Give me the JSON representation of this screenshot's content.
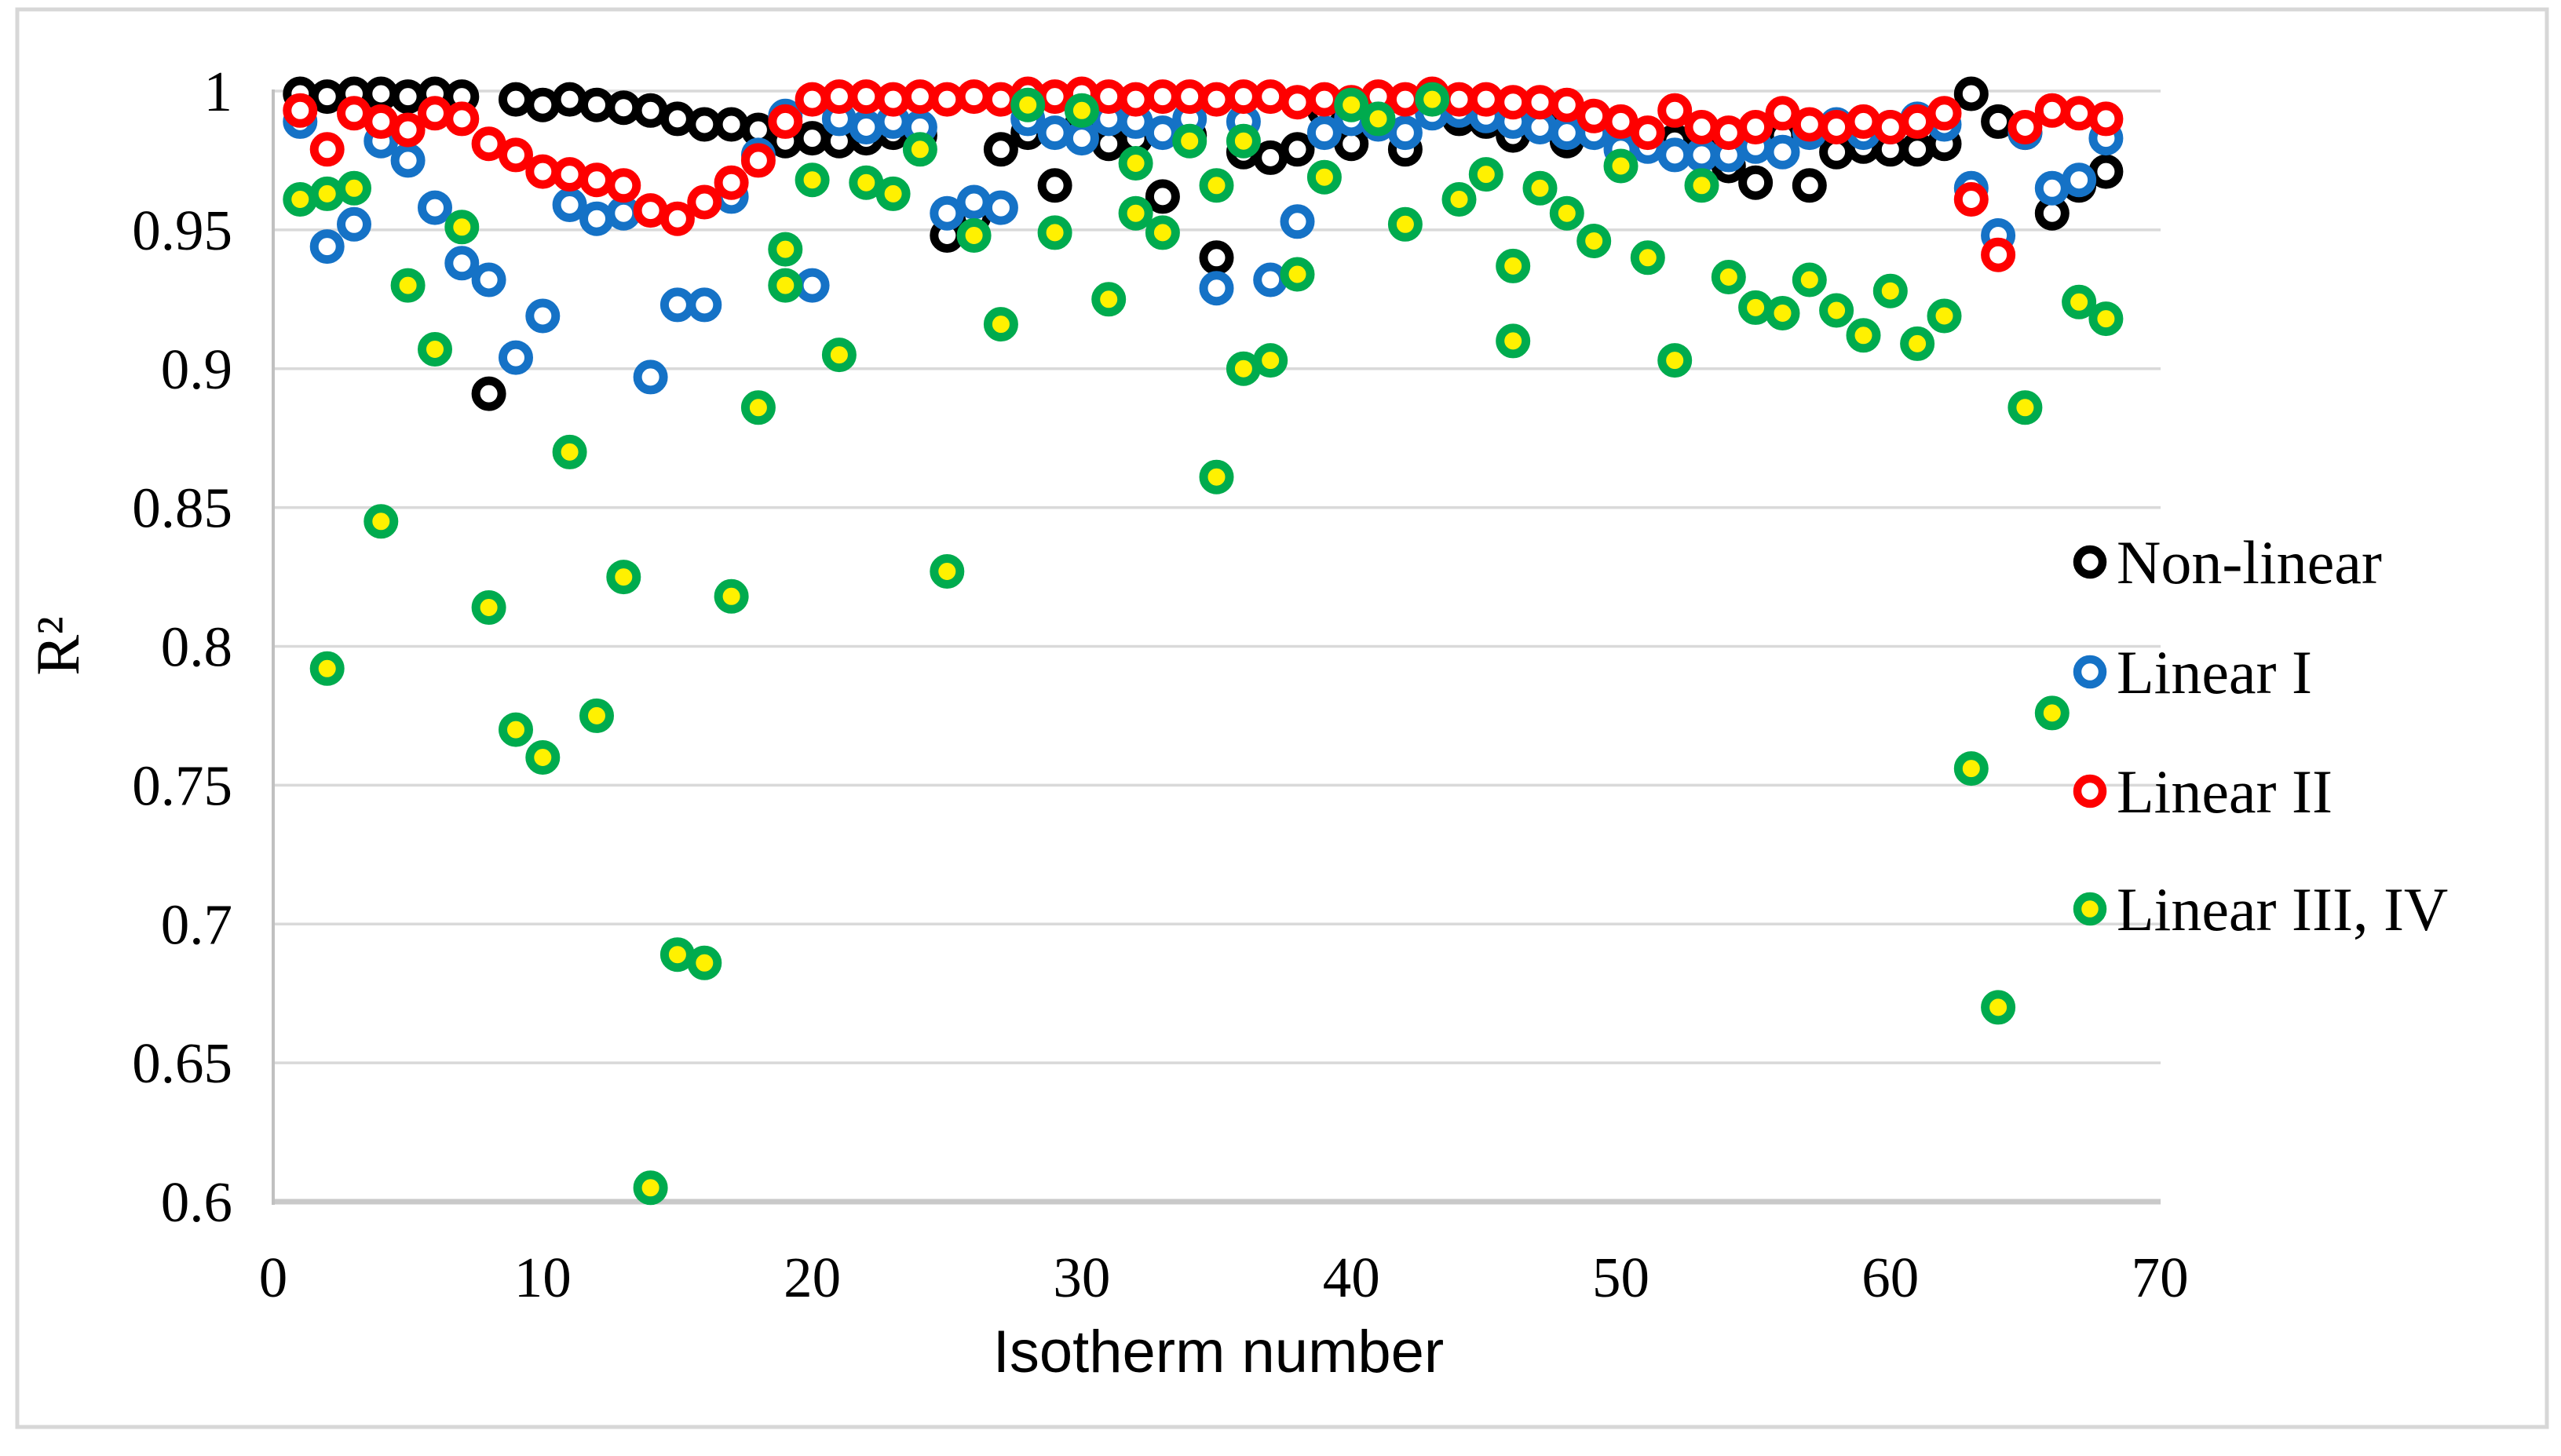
{
  "figure": {
    "background": "#ffffff",
    "border_color": "#d7d7d7",
    "gridline_color": "#d9d9d9",
    "axisline_color": "#c0c0c0"
  },
  "chart_data": {
    "type": "scatter",
    "title": "",
    "xlabel": "Isotherm number",
    "ylabel": "R²",
    "xlim": [
      0,
      70
    ],
    "ylim": [
      0.6,
      1.0
    ],
    "grid": true,
    "legend_position": "right-middle",
    "xticks": [
      0,
      10,
      20,
      30,
      40,
      50,
      60,
      70
    ],
    "yticks": [
      "1",
      "0.95",
      "0.9",
      "0.85",
      "0.8",
      "0.75",
      "0.7",
      "0.65",
      "0.6"
    ],
    "ytick_values": [
      1.0,
      0.95,
      0.9,
      0.85,
      0.8,
      0.75,
      0.7,
      0.65,
      0.6
    ],
    "categories_x": [
      1,
      2,
      3,
      4,
      5,
      6,
      7,
      8,
      9,
      10,
      11,
      12,
      13,
      14,
      15,
      16,
      17,
      18,
      19,
      20,
      21,
      22,
      23,
      24,
      25,
      26,
      27,
      28,
      29,
      30,
      31,
      32,
      33,
      34,
      35,
      36,
      37,
      38,
      39,
      40,
      41,
      42,
      43,
      44,
      45,
      46,
      47,
      48,
      49,
      50,
      51,
      52,
      53,
      54,
      55,
      56,
      57,
      58,
      59,
      60,
      61,
      62,
      63,
      64,
      65,
      66,
      67,
      68
    ],
    "series": [
      {
        "name": "Non-linear",
        "ring": "#000000",
        "fill": "#ffffff",
        "uses_categories": true,
        "y": [
          0.999,
          0.998,
          0.999,
          0.999,
          0.998,
          0.999,
          0.998,
          0.891,
          0.997,
          0.995,
          0.997,
          0.995,
          0.994,
          0.993,
          0.99,
          0.988,
          0.988,
          0.986,
          0.982,
          0.983,
          0.982,
          0.983,
          0.985,
          0.984,
          0.948,
          0.955,
          0.979,
          0.985,
          0.966,
          0.988,
          0.981,
          0.983,
          0.962,
          0.984,
          0.94,
          0.978,
          0.976,
          0.979,
          0.993,
          0.981,
          0.994,
          0.979,
          0.995,
          0.99,
          0.989,
          0.984,
          0.99,
          0.982,
          0.988,
          0.985,
          0.982,
          0.982,
          0.984,
          0.973,
          0.967,
          0.984,
          0.966,
          0.978,
          0.98,
          0.979,
          0.979,
          0.981,
          0.999,
          0.989,
          0.985,
          0.956,
          0.966,
          0.971
        ]
      },
      {
        "name": "Linear I",
        "ring": "#1572c6",
        "fill": "#ffffff",
        "uses_categories": true,
        "y": [
          0.989,
          0.944,
          0.952,
          0.982,
          0.975,
          0.958,
          0.938,
          0.932,
          0.904,
          0.919,
          0.959,
          0.954,
          0.956,
          0.897,
          0.923,
          0.923,
          0.962,
          0.977,
          0.991,
          0.93,
          0.99,
          0.987,
          0.989,
          0.987,
          0.956,
          0.96,
          0.958,
          0.99,
          0.985,
          0.983,
          0.99,
          0.989,
          0.985,
          0.99,
          0.929,
          0.989,
          0.932,
          0.953,
          0.985,
          0.99,
          0.988,
          0.985,
          0.992,
          0.993,
          0.991,
          0.989,
          0.987,
          0.985,
          0.985,
          0.979,
          0.98,
          0.977,
          0.977,
          0.977,
          0.98,
          0.978,
          0.985,
          0.988,
          0.985,
          0.987,
          0.99,
          0.988,
          0.965,
          0.948,
          0.985,
          0.965,
          0.968,
          0.983
        ]
      },
      {
        "name": "Linear II",
        "ring": "#fe0000",
        "fill": "#ffffff",
        "uses_categories": true,
        "y": [
          0.993,
          0.979,
          0.992,
          0.989,
          0.986,
          0.992,
          0.99,
          0.981,
          0.977,
          0.971,
          0.97,
          0.968,
          0.966,
          0.957,
          0.954,
          0.96,
          0.967,
          0.975,
          0.989,
          0.997,
          0.998,
          0.998,
          0.997,
          0.998,
          0.997,
          0.998,
          0.997,
          0.999,
          0.998,
          0.999,
          0.998,
          0.997,
          0.998,
          0.998,
          0.997,
          0.998,
          0.998,
          0.996,
          0.997,
          0.996,
          0.998,
          0.997,
          0.999,
          0.997,
          0.997,
          0.996,
          0.996,
          0.995,
          0.991,
          0.989,
          0.985,
          0.993,
          0.987,
          0.985,
          0.987,
          0.992,
          0.988,
          0.987,
          0.989,
          0.987,
          0.989,
          0.992,
          0.961,
          0.941,
          0.987,
          0.993,
          0.992,
          0.99
        ]
      },
      {
        "name": "Linear III, IV",
        "ring": "#00ab4e",
        "fill": "#fff100",
        "uses_categories": false,
        "x": [
          1,
          2,
          2,
          3,
          4,
          5,
          6,
          7,
          8,
          9,
          10,
          11,
          12,
          13,
          14,
          15,
          16,
          17,
          18,
          19,
          19,
          20,
          21,
          22,
          23,
          24,
          25,
          26,
          27,
          28,
          29,
          30,
          31,
          32,
          32,
          33,
          34,
          35,
          35,
          36,
          36,
          37,
          38,
          39,
          40,
          41,
          42,
          43,
          44,
          45,
          46,
          46,
          47,
          48,
          49,
          50,
          51,
          52,
          53,
          54,
          55,
          56,
          57,
          58,
          59,
          60,
          61,
          62,
          63,
          64,
          65,
          66,
          67,
          68
        ],
        "y": [
          0.961,
          0.963,
          0.792,
          0.965,
          0.845,
          0.93,
          0.907,
          0.951,
          0.814,
          0.77,
          0.76,
          0.87,
          0.775,
          0.825,
          0.605,
          0.689,
          0.686,
          0.818,
          0.886,
          0.943,
          0.93,
          0.968,
          0.905,
          0.967,
          0.963,
          0.979,
          0.827,
          0.948,
          0.916,
          0.995,
          0.949,
          0.993,
          0.925,
          0.974,
          0.956,
          0.949,
          0.982,
          0.966,
          0.861,
          0.982,
          0.9,
          0.903,
          0.934,
          0.969,
          0.995,
          0.99,
          0.952,
          0.997,
          0.961,
          0.97,
          0.937,
          0.91,
          0.965,
          0.956,
          0.946,
          0.973,
          0.94,
          0.903,
          0.966,
          0.933,
          0.922,
          0.92,
          0.932,
          0.921,
          0.912,
          0.928,
          0.909,
          0.919,
          0.756,
          0.67,
          0.886,
          0.776,
          0.924,
          0.918
        ]
      }
    ],
    "legend": [
      {
        "label": "Non-linear",
        "ring": "#000000",
        "fill": "#ffffff"
      },
      {
        "label": "Linear I",
        "ring": "#1572c6",
        "fill": "#ffffff"
      },
      {
        "label": "Linear II",
        "ring": "#fe0000",
        "fill": "#ffffff"
      },
      {
        "label": "Linear III, IV",
        "ring": "#00ab4e",
        "fill": "#fff100"
      }
    ]
  }
}
